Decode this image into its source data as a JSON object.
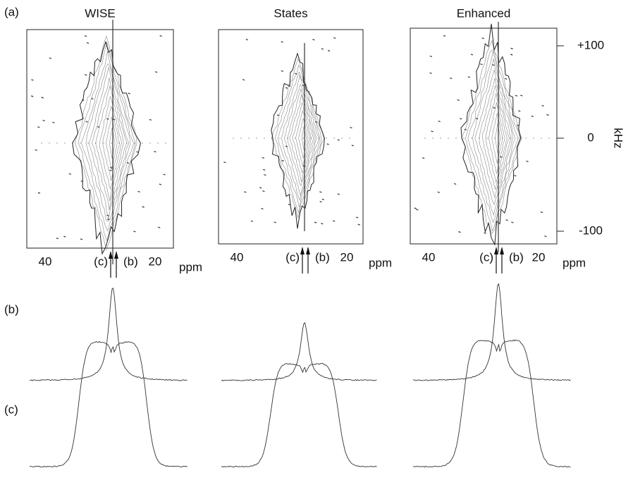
{
  "panel_labels": [
    "(a)",
    "(b)",
    "(c)"
  ],
  "columns": [
    {
      "title": "WISE",
      "x_ticks": [
        "40",
        "20"
      ],
      "x_unit": "ppm",
      "arrow_labels": [
        "(c)",
        "(b)"
      ]
    },
    {
      "title": "States",
      "x_ticks": [
        "40",
        "20"
      ],
      "x_unit": "ppm",
      "arrow_labels": [
        "(c)",
        "(b)"
      ]
    },
    {
      "title": "Enhanced",
      "x_ticks": [
        "40",
        "20"
      ],
      "x_unit": "ppm",
      "arrow_labels": [
        "(c)",
        "(b)"
      ]
    }
  ],
  "y_axis": {
    "ticks": [
      "+100",
      "0",
      "-100"
    ],
    "unit": "kHz"
  }
}
